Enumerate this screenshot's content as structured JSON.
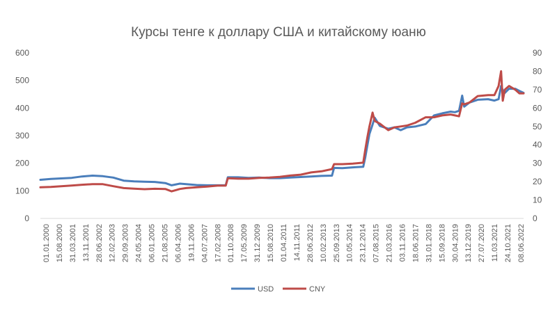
{
  "chart_data": {
    "type": "line",
    "title": "Курсы тенге к доллару США и китайскому юаню",
    "xlabel": "",
    "ylabel": "",
    "y_left": {
      "min": 0,
      "max": 600,
      "ticks": [
        "0",
        "100",
        "200",
        "300",
        "400",
        "500",
        "600"
      ]
    },
    "y_right": {
      "min": 0,
      "max": 90,
      "ticks": [
        "0",
        "10",
        "20",
        "30",
        "40",
        "50",
        "60",
        "70",
        "80",
        "90"
      ]
    },
    "x_tick_labels": [
      "01.01.2000",
      "15.08.2000",
      "31.03.2001",
      "13.11.2001",
      "28.06.2002",
      "12.02.2003",
      "29.09.2003",
      "24.05.2004",
      "06.01.2005",
      "21.08.2005",
      "06.04.2006",
      "19.11.2006",
      "04.07.2007",
      "17.02.2008",
      "01.10.2008",
      "17.05.2009",
      "31.12.2009",
      "15.08.2010",
      "01.04.2011",
      "14.11.2011",
      "28.06.2012",
      "10.02.2013",
      "25.09.2013",
      "10.05.2014",
      "23.12.2014",
      "07.08.2015",
      "21.03.2016",
      "03.11.2016",
      "18.06.2017",
      "31.01.2018",
      "15.09.2018",
      "30.04.2019",
      "13.12.2019",
      "27.07.2020",
      "11.03.2021",
      "24.10.2021",
      "08.06.2022"
    ],
    "legend_position": "bottom",
    "grid": false,
    "colors": {
      "USD": "#4a7ebb",
      "CNY": "#be4b48"
    },
    "x": [
      2000.0,
      2000.5,
      2001.0,
      2001.5,
      2002.0,
      2002.5,
      2003.0,
      2003.5,
      2004.0,
      2004.5,
      2005.0,
      2005.5,
      2006.0,
      2006.3,
      2006.7,
      2007.0,
      2007.5,
      2008.0,
      2008.5,
      2008.9,
      2009.0,
      2009.1,
      2009.5,
      2010.0,
      2010.5,
      2011.0,
      2011.5,
      2012.0,
      2012.5,
      2013.0,
      2013.5,
      2014.0,
      2014.1,
      2014.5,
      2015.0,
      2015.5,
      2015.6,
      2015.7,
      2015.8,
      2015.95,
      2016.05,
      2016.3,
      2016.7,
      2017.0,
      2017.3,
      2017.6,
      2018.0,
      2018.5,
      2018.9,
      2019.3,
      2019.7,
      2019.9,
      2020.1,
      2020.25,
      2020.35,
      2020.6,
      2021.0,
      2021.5,
      2021.8,
      2022.0,
      2022.12,
      2022.2,
      2022.3,
      2022.5,
      2022.8,
      2023.0,
      2023.2
    ],
    "series": [
      {
        "name": "USD",
        "axis": "left",
        "values": [
          140,
          143,
          145,
          147,
          152,
          155,
          153,
          148,
          137,
          134,
          133,
          132,
          128,
          120,
          126,
          124,
          121,
          120,
          120,
          120,
          149,
          149,
          149,
          147,
          148,
          146,
          146,
          148,
          150,
          152,
          154,
          155,
          183,
          182,
          185,
          187,
          222,
          264,
          306,
          340,
          365,
          335,
          325,
          330,
          320,
          330,
          333,
          342,
          373,
          381,
          387,
          385,
          390,
          445,
          405,
          420,
          430,
          432,
          427,
          432,
          480,
          465,
          455,
          470,
          470,
          462,
          455
        ]
      },
      {
        "name": "CNY",
        "axis": "right",
        "values": [
          16.9,
          17.1,
          17.5,
          17.9,
          18.3,
          18.6,
          18.6,
          17.5,
          16.5,
          16.2,
          15.9,
          16.1,
          16.0,
          14.7,
          16.0,
          16.5,
          16.9,
          17.3,
          17.8,
          17.8,
          21.8,
          21.8,
          21.6,
          21.6,
          22.0,
          22.2,
          22.6,
          23.3,
          23.8,
          25.0,
          25.6,
          26.8,
          29.5,
          29.5,
          29.8,
          30.3,
          37.5,
          44.0,
          50.0,
          57.5,
          53.0,
          51.5,
          48.0,
          49.5,
          50.0,
          50.5,
          52.0,
          55.0,
          55.0,
          56.0,
          56.5,
          56.0,
          55.5,
          62.5,
          62.0,
          63.0,
          66.5,
          67.0,
          67.0,
          72.0,
          80.0,
          64.0,
          70.0,
          72.0,
          70.0,
          68.0,
          68.0
        ]
      }
    ]
  }
}
